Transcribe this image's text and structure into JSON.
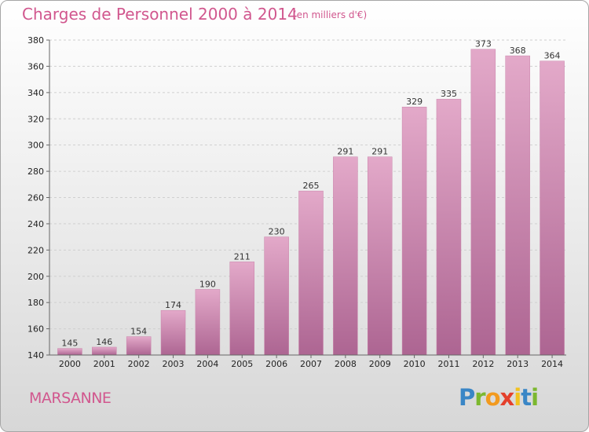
{
  "header": {
    "title": "Charges de Personnel 2000 à 2014",
    "subtitle": "(en milliers d'€)"
  },
  "footer": {
    "commune": "MARSANNE",
    "logo": "Proxiti",
    "logo_colors": [
      "#3a86c6",
      "#7cb82f",
      "#f29a1f",
      "#e4402c",
      "#f2c21f",
      "#3a86c6",
      "#7cb82f"
    ]
  },
  "colors": {
    "accent": "#d1578e",
    "bar_top": "#e3a9c9",
    "bar_bottom": "#ad6592"
  },
  "chart_data": {
    "type": "bar",
    "title": "Charges de Personnel 2000 à 2014",
    "subtitle": "(en milliers d'€)",
    "xlabel": "",
    "ylabel": "",
    "categories": [
      "2000",
      "2001",
      "2002",
      "2003",
      "2004",
      "2005",
      "2006",
      "2007",
      "2008",
      "2009",
      "2010",
      "2011",
      "2012",
      "2013",
      "2014"
    ],
    "values": [
      145,
      146,
      154,
      174,
      190,
      211,
      230,
      265,
      291,
      291,
      329,
      335,
      373,
      368,
      364
    ],
    "ylim": [
      140,
      380
    ],
    "yticks": [
      140,
      160,
      180,
      200,
      220,
      240,
      260,
      280,
      300,
      320,
      340,
      360,
      380
    ],
    "grid": true
  }
}
